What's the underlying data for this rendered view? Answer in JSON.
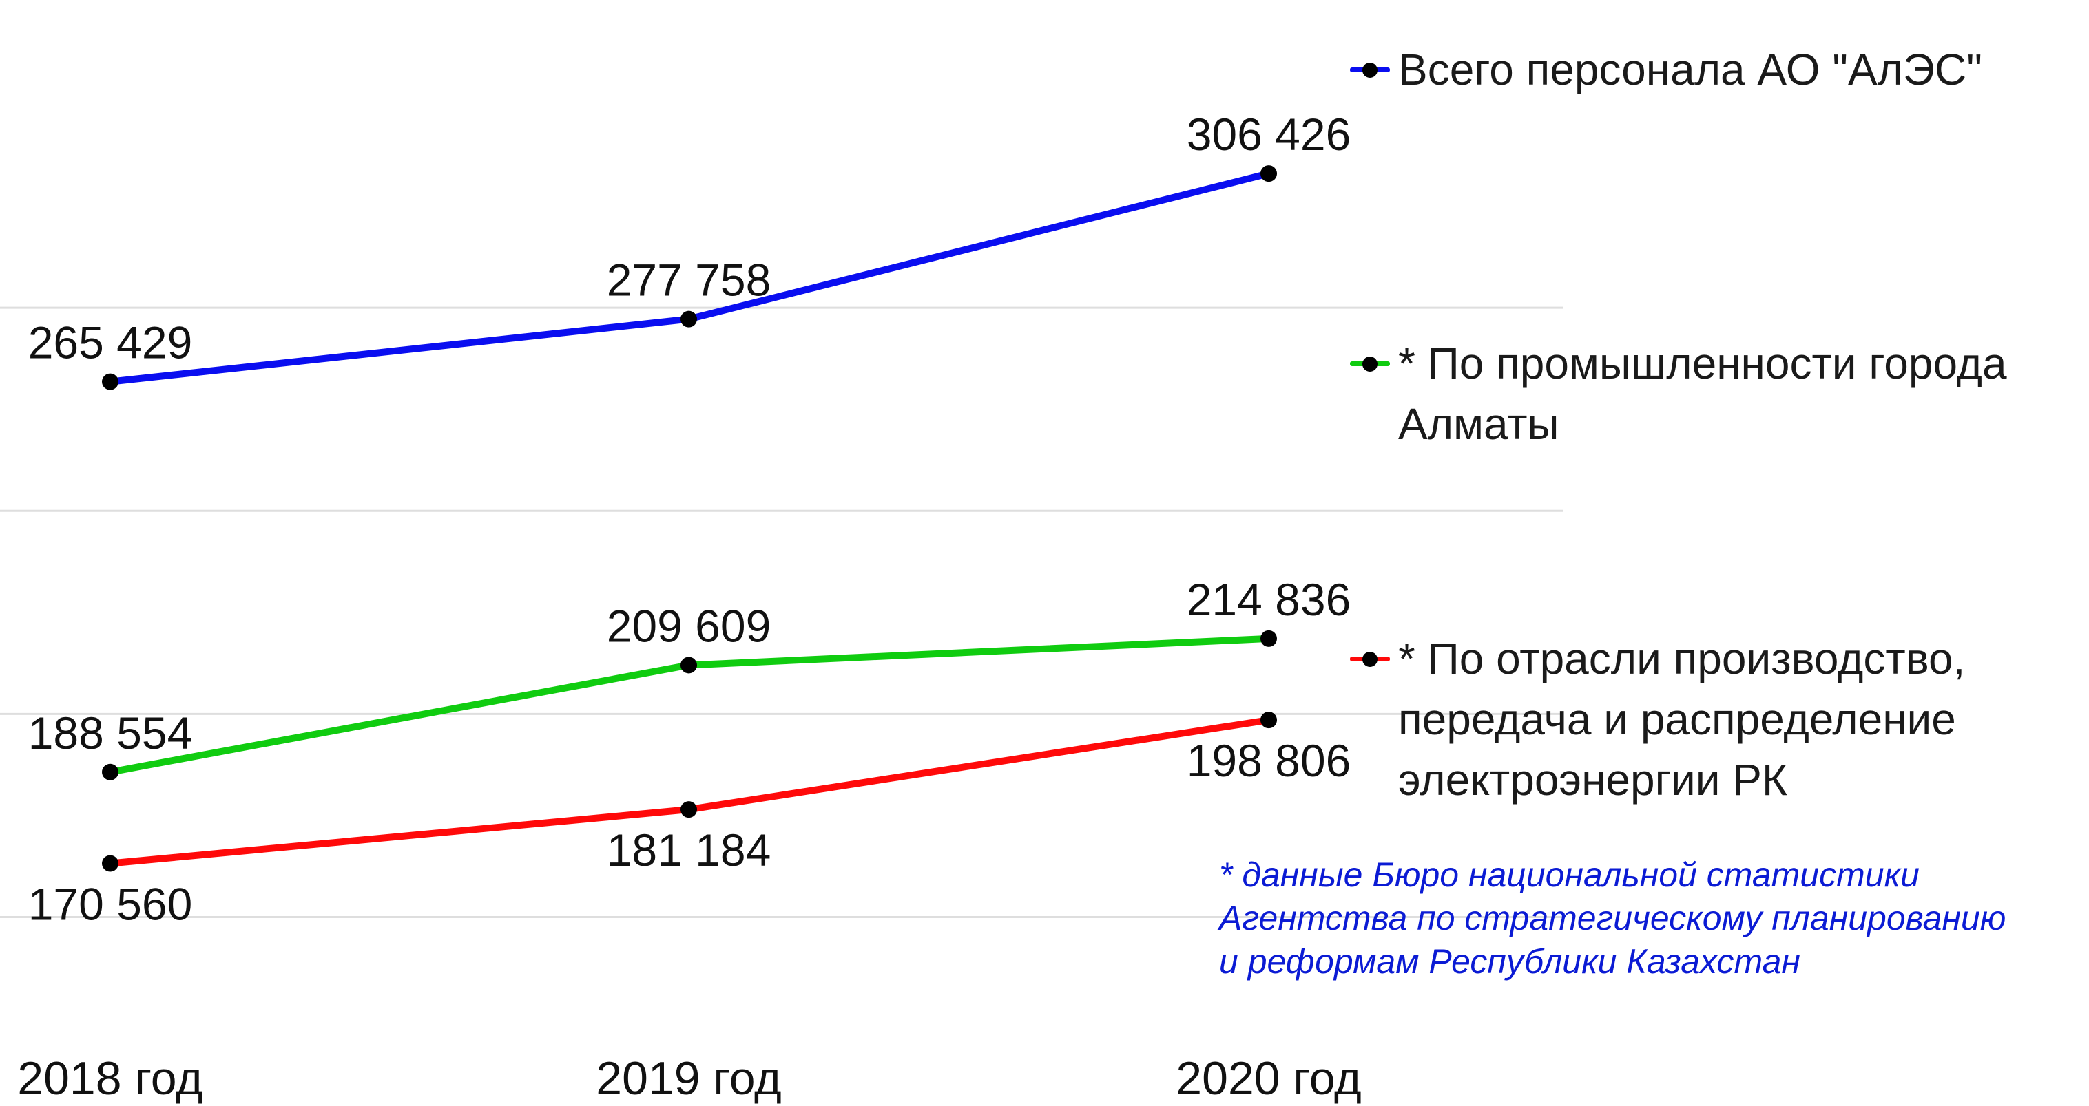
{
  "chart_data": {
    "type": "line",
    "categories": [
      "2018 год",
      "2019 год",
      "2020 год"
    ],
    "series": [
      {
        "name": "Всего персонала АО \"АлЭС\"",
        "color": "#0a0ef0",
        "values": [
          265429,
          277758,
          306426
        ],
        "labels": [
          "265 429",
          "277 758",
          "306 426"
        ]
      },
      {
        "name": "* По промышленности города Алматы",
        "color": "#10cc10",
        "values": [
          188554,
          209609,
          214836
        ],
        "labels": [
          "188 554",
          "209 609",
          "214 836"
        ]
      },
      {
        "name": "* По отрасли производство, передача и распределение электроэнергии РК",
        "color": "#ff0a0a",
        "values": [
          170560,
          181184,
          198806
        ],
        "labels": [
          "170 560",
          "181 184",
          "198 806"
        ]
      }
    ],
    "ylim": [
      140000,
      320000
    ],
    "grid": true,
    "legend_position": "right",
    "title": "",
    "xlabel": "",
    "ylabel": ""
  },
  "legend": {
    "items": [
      {
        "text": "Всего персонала АО \"АлЭС\""
      },
      {
        "text": "* По промышленности города\nАлматы"
      },
      {
        "text": "* По отрасли производство,\nпередача и распределение\nэлектроэнергии РК"
      }
    ]
  },
  "note": {
    "lines": [
      "* данные Бюро национальной статистики",
      "Агентства по стратегическому планированию",
      "и реформам Республики Казахстан"
    ]
  }
}
